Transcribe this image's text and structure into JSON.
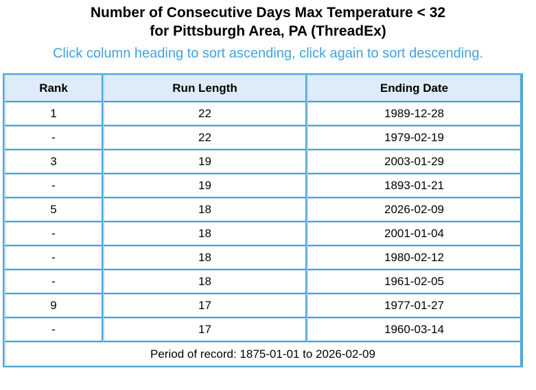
{
  "page": {
    "title_line1": "Number of Consecutive Days Max Temperature < 32",
    "title_line2": "for Pittsburgh Area, PA (ThreadEx)",
    "sort_instructions": "Click column heading to sort ascending, click again to sort descending."
  },
  "chart_data": {
    "type": "table",
    "title": "Number of Consecutive Days Max Temperature < 32 for Pittsburgh Area, PA (ThreadEx)",
    "columns": [
      "Rank",
      "Run Length",
      "Ending Date"
    ],
    "rows": [
      [
        "1",
        "22",
        "1989-12-28"
      ],
      [
        "-",
        "22",
        "1979-02-19"
      ],
      [
        "3",
        "19",
        "2003-01-29"
      ],
      [
        "-",
        "19",
        "1893-01-21"
      ],
      [
        "5",
        "18",
        "2026-02-09"
      ],
      [
        "-",
        "18",
        "2001-01-04"
      ],
      [
        "-",
        "18",
        "1980-02-12"
      ],
      [
        "-",
        "18",
        "1961-02-05"
      ],
      [
        "9",
        "17",
        "1977-01-27"
      ],
      [
        "-",
        "17",
        "1960-03-14"
      ]
    ],
    "footer": "Period of record: 1875-01-01 to 2026-02-09"
  },
  "colors": {
    "border_dark": "#4ba5db",
    "border_light": "#aed9f2",
    "header_bg": "#ddecf8",
    "instructions_text": "#42a2df"
  }
}
